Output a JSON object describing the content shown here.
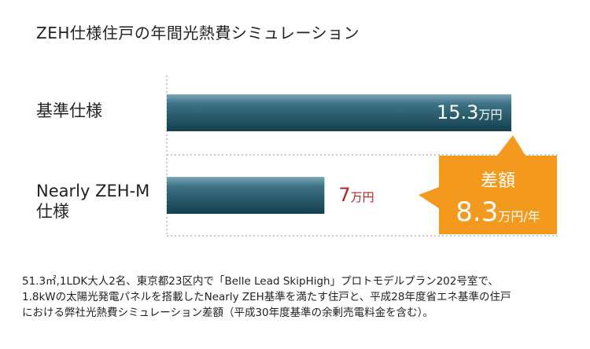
{
  "title": "ZEH仕様住戸の年間光熱費シミュレーション",
  "chart_data": {
    "type": "bar",
    "orientation": "horizontal",
    "categories": [
      "基準仕様",
      "Nearly ZEH-M\n仕様"
    ],
    "values": [
      15.3,
      7
    ],
    "value_labels": [
      "15.3",
      "7"
    ],
    "unit": "万円",
    "bar_color": "#1f5a6c",
    "highlight_color": "#b5202a",
    "difference": {
      "label": "差額",
      "value": "8.3",
      "unit": "万円/年",
      "color": "#f39a1e"
    }
  },
  "notes": [
    "51.3㎡,1LDK大人2名、東京都23区内で「Belle Lead SkipHigh」プロトモデルプラン202号室で、",
    "1.8kWの太陽光発電パネルを搭載したNearly ZEH基準を満たす住戸と、平成28年度省エネ基準の住戸",
    "における弊社光熱費シミュレーション差額（平成30年度基準の余剰売電料金を含む）。"
  ]
}
